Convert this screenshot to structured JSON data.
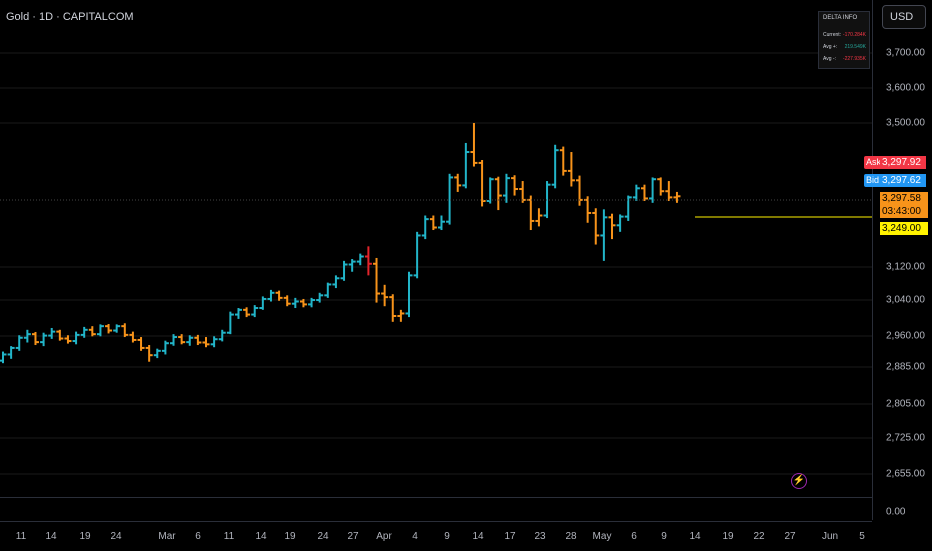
{
  "header": {
    "symbol_title": "Gold · 1D · CAPITALCOM"
  },
  "price_scale": {
    "currency": "USD",
    "ticks": [
      "3,700.00",
      "3,600.00",
      "3,500.00",
      "3,120.00",
      "3,040.00",
      "2,960.00",
      "2,885.00",
      "2,805.00",
      "2,725.00",
      "2,655.00",
      "0.00"
    ]
  },
  "quote": {
    "ask_label": "Ask",
    "ask_price": "3,297.92",
    "bid_label": "Bid",
    "bid_price": "3,297.62",
    "last_price": "3,297.58",
    "countdown": "03:43:00",
    "alert_price": "3,249.00"
  },
  "delta_info": {
    "title": "DELTA INFO",
    "rows": [
      {
        "label": "Current:",
        "value": "-170.284K",
        "color": "#f23645"
      },
      {
        "label": "Avg +:",
        "value": "219.549K",
        "color": "#26a69a"
      },
      {
        "label": "Avg -:",
        "value": "-227.935K",
        "color": "#f23645"
      }
    ]
  },
  "time_axis": [
    "11",
    "14",
    "19",
    "24",
    "Mar",
    "6",
    "11",
    "14",
    "19",
    "24",
    "27",
    "Apr",
    "4",
    "9",
    "14",
    "17",
    "23",
    "28",
    "May",
    "6",
    "9",
    "14",
    "19",
    "22",
    "27",
    "Jun",
    "5"
  ],
  "colors": {
    "up": "#22b5c9",
    "down": "#f7931a",
    "highlight": "#e3242b",
    "background": "#000000",
    "grid": "#1a1a1a",
    "alert_line": "#fff200",
    "flash_icon": "#9c27b0"
  },
  "icons": {
    "flash": "lightning-icon"
  },
  "chart_data": {
    "type": "ohlc",
    "series": [
      {
        "o": 2845,
        "h": 2870,
        "l": 2838,
        "c": 2862,
        "dir": "up"
      },
      {
        "o": 2862,
        "h": 2885,
        "l": 2850,
        "c": 2880,
        "dir": "up"
      },
      {
        "o": 2880,
        "h": 2915,
        "l": 2872,
        "c": 2908,
        "dir": "up"
      },
      {
        "o": 2908,
        "h": 2930,
        "l": 2895,
        "c": 2918,
        "dir": "up"
      },
      {
        "o": 2918,
        "h": 2924,
        "l": 2888,
        "c": 2896,
        "dir": "down"
      },
      {
        "o": 2896,
        "h": 2922,
        "l": 2885,
        "c": 2914,
        "dir": "up"
      },
      {
        "o": 2914,
        "h": 2935,
        "l": 2905,
        "c": 2925,
        "dir": "up"
      },
      {
        "o": 2925,
        "h": 2930,
        "l": 2900,
        "c": 2906,
        "dir": "down"
      },
      {
        "o": 2906,
        "h": 2915,
        "l": 2892,
        "c": 2899,
        "dir": "down"
      },
      {
        "o": 2899,
        "h": 2925,
        "l": 2890,
        "c": 2916,
        "dir": "up"
      },
      {
        "o": 2916,
        "h": 2938,
        "l": 2908,
        "c": 2930,
        "dir": "up"
      },
      {
        "o": 2930,
        "h": 2940,
        "l": 2912,
        "c": 2918,
        "dir": "down"
      },
      {
        "o": 2918,
        "h": 2945,
        "l": 2912,
        "c": 2940,
        "dir": "up"
      },
      {
        "o": 2940,
        "h": 2946,
        "l": 2920,
        "c": 2928,
        "dir": "down"
      },
      {
        "o": 2928,
        "h": 2945,
        "l": 2922,
        "c": 2940,
        "dir": "up"
      },
      {
        "o": 2940,
        "h": 2948,
        "l": 2910,
        "c": 2916,
        "dir": "down"
      },
      {
        "o": 2916,
        "h": 2925,
        "l": 2895,
        "c": 2902,
        "dir": "down"
      },
      {
        "o": 2902,
        "h": 2910,
        "l": 2872,
        "c": 2880,
        "dir": "down"
      },
      {
        "o": 2880,
        "h": 2888,
        "l": 2842,
        "c": 2860,
        "dir": "down"
      },
      {
        "o": 2860,
        "h": 2878,
        "l": 2852,
        "c": 2872,
        "dir": "up"
      },
      {
        "o": 2872,
        "h": 2900,
        "l": 2862,
        "c": 2893,
        "dir": "up"
      },
      {
        "o": 2893,
        "h": 2918,
        "l": 2886,
        "c": 2910,
        "dir": "up"
      },
      {
        "o": 2910,
        "h": 2918,
        "l": 2890,
        "c": 2896,
        "dir": "down"
      },
      {
        "o": 2896,
        "h": 2915,
        "l": 2886,
        "c": 2908,
        "dir": "up"
      },
      {
        "o": 2908,
        "h": 2916,
        "l": 2888,
        "c": 2895,
        "dir": "down"
      },
      {
        "o": 2895,
        "h": 2910,
        "l": 2882,
        "c": 2890,
        "dir": "down"
      },
      {
        "o": 2890,
        "h": 2912,
        "l": 2882,
        "c": 2904,
        "dir": "up"
      },
      {
        "o": 2904,
        "h": 2930,
        "l": 2898,
        "c": 2922,
        "dir": "up"
      },
      {
        "o": 2922,
        "h": 2980,
        "l": 2918,
        "c": 2972,
        "dir": "up"
      },
      {
        "o": 2972,
        "h": 2990,
        "l": 2960,
        "c": 2985,
        "dir": "up"
      },
      {
        "o": 2985,
        "h": 2992,
        "l": 2965,
        "c": 2972,
        "dir": "down"
      },
      {
        "o": 2972,
        "h": 2998,
        "l": 2965,
        "c": 2990,
        "dir": "up"
      },
      {
        "o": 2990,
        "h": 3022,
        "l": 2985,
        "c": 3015,
        "dir": "up"
      },
      {
        "o": 3015,
        "h": 3040,
        "l": 3008,
        "c": 3032,
        "dir": "up"
      },
      {
        "o": 3032,
        "h": 3038,
        "l": 3010,
        "c": 3018,
        "dir": "down"
      },
      {
        "o": 3018,
        "h": 3025,
        "l": 2995,
        "c": 3002,
        "dir": "down"
      },
      {
        "o": 3002,
        "h": 3018,
        "l": 2990,
        "c": 3008,
        "dir": "up"
      },
      {
        "o": 3008,
        "h": 3015,
        "l": 2992,
        "c": 3000,
        "dir": "down"
      },
      {
        "o": 3000,
        "h": 3018,
        "l": 2992,
        "c": 3012,
        "dir": "up"
      },
      {
        "o": 3012,
        "h": 3032,
        "l": 3005,
        "c": 3025,
        "dir": "up"
      },
      {
        "o": 3025,
        "h": 3060,
        "l": 3018,
        "c": 3055,
        "dir": "up"
      },
      {
        "o": 3055,
        "h": 3080,
        "l": 3045,
        "c": 3072,
        "dir": "up"
      },
      {
        "o": 3072,
        "h": 3120,
        "l": 3065,
        "c": 3110,
        "dir": "up"
      },
      {
        "o": 3110,
        "h": 3125,
        "l": 3090,
        "c": 3118,
        "dir": "up"
      },
      {
        "o": 3118,
        "h": 3140,
        "l": 3108,
        "c": 3132,
        "dir": "up"
      },
      {
        "o": 3132,
        "h": 3160,
        "l": 3080,
        "c": 3112,
        "dir": "red"
      },
      {
        "o": 3112,
        "h": 3128,
        "l": 3005,
        "c": 3030,
        "dir": "down"
      },
      {
        "o": 3030,
        "h": 3054,
        "l": 2995,
        "c": 3020,
        "dir": "down"
      },
      {
        "o": 3020,
        "h": 3028,
        "l": 2952,
        "c": 2968,
        "dir": "down"
      },
      {
        "o": 2968,
        "h": 2985,
        "l": 2952,
        "c": 2975,
        "dir": "down"
      },
      {
        "o": 2975,
        "h": 3090,
        "l": 2965,
        "c": 3080,
        "dir": "up"
      },
      {
        "o": 3080,
        "h": 3200,
        "l": 3072,
        "c": 3190,
        "dir": "up"
      },
      {
        "o": 3190,
        "h": 3245,
        "l": 3180,
        "c": 3235,
        "dir": "up"
      },
      {
        "o": 3235,
        "h": 3245,
        "l": 3205,
        "c": 3212,
        "dir": "down"
      },
      {
        "o": 3212,
        "h": 3245,
        "l": 3205,
        "c": 3228,
        "dir": "up"
      },
      {
        "o": 3228,
        "h": 3360,
        "l": 3220,
        "c": 3350,
        "dir": "up"
      },
      {
        "o": 3350,
        "h": 3360,
        "l": 3310,
        "c": 3328,
        "dir": "down"
      },
      {
        "o": 3328,
        "h": 3445,
        "l": 3320,
        "c": 3420,
        "dir": "up"
      },
      {
        "o": 3420,
        "h": 3500,
        "l": 3380,
        "c": 3390,
        "dir": "down"
      },
      {
        "o": 3390,
        "h": 3398,
        "l": 3270,
        "c": 3285,
        "dir": "down"
      },
      {
        "o": 3285,
        "h": 3350,
        "l": 3278,
        "c": 3345,
        "dir": "up"
      },
      {
        "o": 3345,
        "h": 3352,
        "l": 3260,
        "c": 3300,
        "dir": "down"
      },
      {
        "o": 3300,
        "h": 3360,
        "l": 3280,
        "c": 3348,
        "dir": "up"
      },
      {
        "o": 3348,
        "h": 3356,
        "l": 3300,
        "c": 3318,
        "dir": "down"
      },
      {
        "o": 3318,
        "h": 3340,
        "l": 3280,
        "c": 3288,
        "dir": "down"
      },
      {
        "o": 3288,
        "h": 3300,
        "l": 3205,
        "c": 3230,
        "dir": "down"
      },
      {
        "o": 3230,
        "h": 3265,
        "l": 3215,
        "c": 3245,
        "dir": "down"
      },
      {
        "o": 3245,
        "h": 3340,
        "l": 3238,
        "c": 3330,
        "dir": "up"
      },
      {
        "o": 3330,
        "h": 3440,
        "l": 3320,
        "c": 3425,
        "dir": "up"
      },
      {
        "o": 3425,
        "h": 3435,
        "l": 3355,
        "c": 3368,
        "dir": "down"
      },
      {
        "o": 3368,
        "h": 3420,
        "l": 3325,
        "c": 3342,
        "dir": "down"
      },
      {
        "o": 3342,
        "h": 3355,
        "l": 3272,
        "c": 3288,
        "dir": "down"
      },
      {
        "o": 3288,
        "h": 3298,
        "l": 3225,
        "c": 3252,
        "dir": "down"
      },
      {
        "o": 3252,
        "h": 3265,
        "l": 3165,
        "c": 3190,
        "dir": "down"
      },
      {
        "o": 3190,
        "h": 3262,
        "l": 3120,
        "c": 3240,
        "dir": "up"
      },
      {
        "o": 3240,
        "h": 3250,
        "l": 3180,
        "c": 3218,
        "dir": "down"
      },
      {
        "o": 3218,
        "h": 3248,
        "l": 3200,
        "c": 3242,
        "dir": "up"
      },
      {
        "o": 3242,
        "h": 3300,
        "l": 3230,
        "c": 3295,
        "dir": "up"
      },
      {
        "o": 3295,
        "h": 3330,
        "l": 3285,
        "c": 3320,
        "dir": "up"
      },
      {
        "o": 3320,
        "h": 3330,
        "l": 3285,
        "c": 3292,
        "dir": "down"
      },
      {
        "o": 3292,
        "h": 3350,
        "l": 3280,
        "c": 3345,
        "dir": "up"
      },
      {
        "o": 3345,
        "h": 3350,
        "l": 3300,
        "c": 3312,
        "dir": "down"
      },
      {
        "o": 3312,
        "h": 3340,
        "l": 3285,
        "c": 3295,
        "dir": "down"
      },
      {
        "o": 3295,
        "h": 3310,
        "l": 3280,
        "c": 3298,
        "dir": "down"
      }
    ]
  }
}
